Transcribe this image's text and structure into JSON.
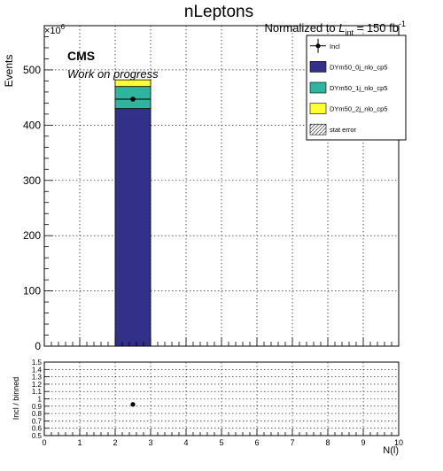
{
  "title": "nLeptons",
  "normalization": {
    "prefix": "Normalized to ",
    "sym": "L",
    "sub": "int",
    "suffix": " = 150 fb",
    "sup": "-1"
  },
  "cms_label": "CMS",
  "cms_sublabel": "Work on progress",
  "chart_data": [
    {
      "type": "bar",
      "stacked": true,
      "xlabel": "N(l)",
      "ylabel": "Events",
      "y_multiplier": {
        "base": "×10",
        "exponent": "6"
      },
      "xlim": [
        0,
        10
      ],
      "ylim": [
        0,
        580
      ],
      "grid": true,
      "x_ticks": [
        0,
        1,
        2,
        3,
        4,
        5,
        6,
        7,
        8,
        9,
        10
      ],
      "y_ticks": [
        0,
        100,
        200,
        300,
        400,
        500
      ],
      "bins": [
        [
          2,
          3
        ]
      ],
      "series": [
        {
          "name": "DYm50_0j_nlo_cp5",
          "color": "#33308a",
          "values": [
            430
          ]
        },
        {
          "name": "DYm50_1j_nlo_cp5",
          "color": "#2fb4a0",
          "values": [
            40
          ]
        },
        {
          "name": "DYm50_2j_nlo_cp5",
          "color": "#ffff33",
          "values": [
            12
          ]
        }
      ],
      "points": [
        {
          "name": "Incl",
          "x": 2.5,
          "y": 447
        }
      ],
      "legend": {
        "position": "top-right",
        "entries": [
          {
            "label": "Incl",
            "style": "marker"
          },
          {
            "label": "DYm50_0j_nlo_cp5",
            "style": "fill",
            "color": "#33308a"
          },
          {
            "label": "DYm50_1j_nlo_cp5",
            "style": "fill",
            "color": "#2fb4a0"
          },
          {
            "label": "DYm50_2j_nlo_cp5",
            "style": "fill",
            "color": "#ffff33"
          },
          {
            "label": "stat error",
            "style": "hatch"
          }
        ]
      }
    },
    {
      "type": "scatter",
      "xlabel": "N(l)",
      "ylabel": "Incl / binned",
      "xlim": [
        0,
        10
      ],
      "ylim": [
        0.5,
        1.5
      ],
      "grid": true,
      "x_ticks": [
        0,
        1,
        2,
        3,
        4,
        5,
        6,
        7,
        8,
        9,
        10
      ],
      "y_ticks": [
        0.5,
        0.6,
        0.7,
        0.8,
        0.9,
        1,
        1.1,
        1.2,
        1.3,
        1.4,
        1.5
      ],
      "y_tick_labels": [
        "0.5",
        "0.6",
        "0.7",
        "0.8",
        "0.9",
        "1",
        "1.1",
        "1.2",
        "1.3",
        "1.4",
        "1.5"
      ],
      "points": [
        {
          "x": 2.5,
          "y": 0.925
        }
      ]
    }
  ]
}
